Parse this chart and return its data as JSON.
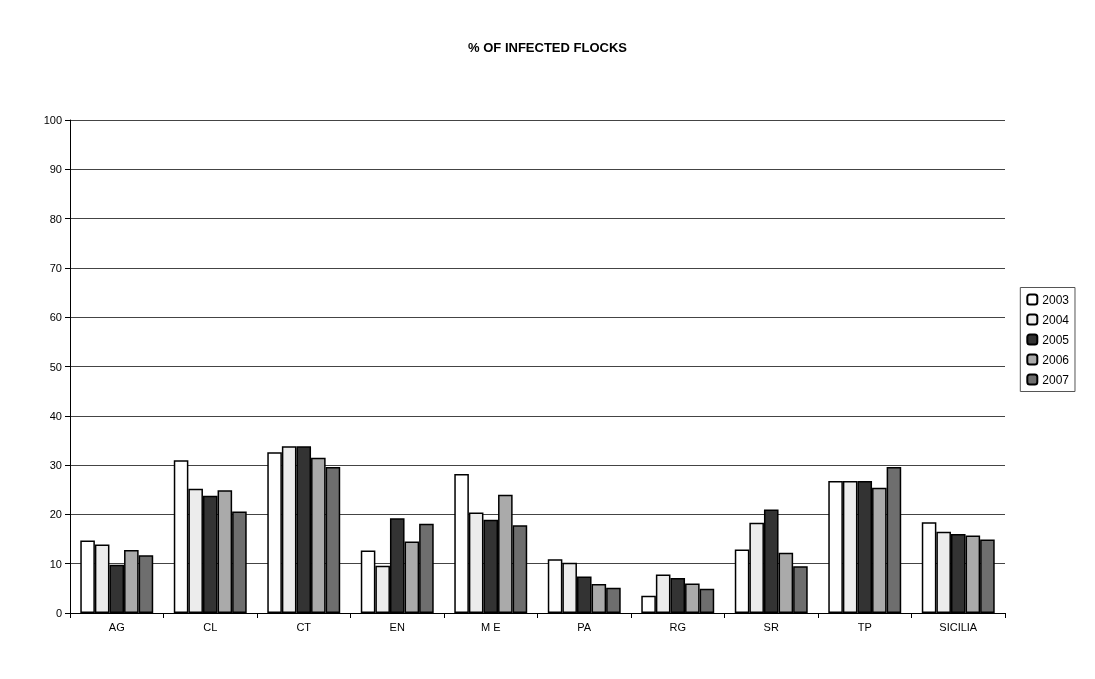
{
  "chart_data": {
    "type": "bar",
    "title": "% OF INFECTED FLOCKS",
    "categories": [
      "AG",
      "CL",
      "CT",
      "EN",
      "M E",
      "PA",
      "RG",
      "SR",
      "TP",
      "SICILIA"
    ],
    "series": [
      {
        "name": "2003",
        "color": "#ffffff",
        "values": [
          14.7,
          31,
          32.6,
          12.7,
          28.2,
          10.9,
          3.5,
          12.9,
          26.8,
          18.4
        ]
      },
      {
        "name": "2004",
        "color": "#ececec",
        "values": [
          13.9,
          25.2,
          33.8,
          9.6,
          20.4,
          10.2,
          7.8,
          18.3,
          26.8,
          16.5
        ]
      },
      {
        "name": "2005",
        "color": "#333333",
        "values": [
          9.8,
          23.8,
          33.8,
          19.2,
          18.9,
          7.4,
          7.1,
          21,
          26.8,
          16
        ]
      },
      {
        "name": "2006",
        "color": "#aaaaaa",
        "values": [
          12.8,
          24.9,
          31.5,
          14.5,
          24,
          5.9,
          6,
          12.2,
          25.4,
          15.7
        ]
      },
      {
        "name": "2007",
        "color": "#6e6e6e",
        "values": [
          11.7,
          20.6,
          29.6,
          18.1,
          17.8,
          5.1,
          4.9,
          9.5,
          29.6,
          14.9
        ]
      }
    ],
    "ylim": [
      0,
      100
    ],
    "yticks": [
      0,
      10,
      20,
      30,
      40,
      50,
      60,
      70,
      80,
      90,
      100
    ],
    "grid": "y",
    "legend": "right"
  }
}
